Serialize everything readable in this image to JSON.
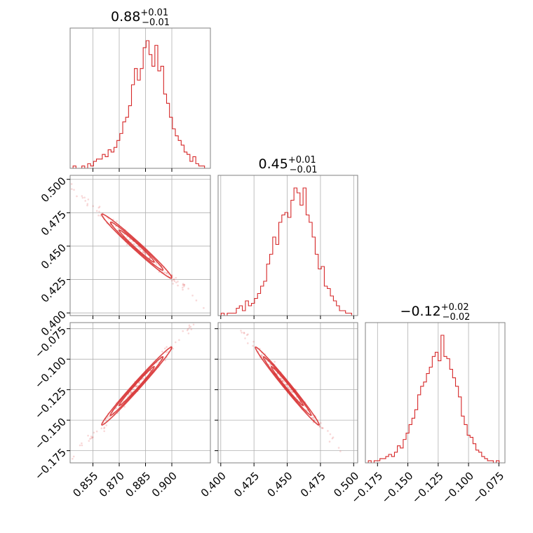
{
  "chart_data": {
    "type": "corner",
    "color": "#d62728",
    "parameters": [
      {
        "title": {
          "main": "0.88",
          "plus": "+0.01",
          "minus": "−0.01"
        },
        "range": [
          0.842,
          0.922
        ],
        "ticks": [
          0.855,
          0.87,
          0.885,
          0.9
        ],
        "tick_labels": [
          "0.855",
          "0.870",
          "0.885",
          "0.900"
        ],
        "grid_lines": [
          0.855,
          0.87,
          0.885,
          0.9
        ],
        "mean": 0.88,
        "sd": 0.01
      },
      {
        "title": {
          "main": "0.45",
          "plus": "+0.01",
          "minus": "−0.01"
        },
        "range": [
          0.398,
          0.503
        ],
        "ticks": [
          0.4,
          0.425,
          0.45,
          0.475,
          0.5
        ],
        "tick_labels": [
          "0.400",
          "0.425",
          "0.450",
          "0.475",
          "0.500"
        ],
        "grid_lines": [
          0.4,
          0.425,
          0.45,
          0.475,
          0.5
        ],
        "mean": 0.45,
        "sd": 0.012
      },
      {
        "title": {
          "main": "−0.12",
          "plus": "+0.02",
          "minus": "−0.02"
        },
        "range": [
          -0.185,
          -0.07
        ],
        "ticks": [
          -0.175,
          -0.15,
          -0.125,
          -0.1,
          -0.075
        ],
        "tick_labels": [
          "−0.175",
          "−0.150",
          "−0.125",
          "−0.100",
          "−0.075"
        ],
        "grid_lines": [
          -0.175,
          -0.15,
          -0.125,
          -0.1,
          -0.075
        ],
        "mean": -0.122,
        "sd": 0.016
      }
    ],
    "histograms": [
      {
        "param": 0,
        "counts": [
          0,
          1,
          0,
          0,
          1,
          0,
          2,
          1,
          3,
          4,
          4,
          6,
          5,
          8,
          7,
          9,
          12,
          15,
          20,
          22,
          27,
          36,
          43,
          38,
          43,
          52,
          55,
          49,
          44,
          53,
          42,
          44,
          32,
          28,
          22,
          17,
          14,
          12,
          10,
          7,
          6,
          3,
          5,
          2,
          1,
          1,
          0,
          0
        ]
      },
      {
        "param": 1,
        "counts": [
          0,
          1,
          0,
          1,
          1,
          1,
          3,
          4,
          2,
          6,
          4,
          5,
          7,
          9,
          12,
          14,
          21,
          25,
          32,
          29,
          38,
          41,
          42,
          40,
          47,
          52,
          50,
          45,
          52,
          41,
          38,
          32,
          25,
          19,
          20,
          12,
          11,
          8,
          6,
          4,
          2,
          2,
          1,
          1,
          0,
          0
        ]
      },
      {
        "param": 2,
        "counts": [
          0,
          1,
          0,
          1,
          1,
          2,
          2,
          3,
          4,
          3,
          5,
          8,
          7,
          11,
          14,
          18,
          21,
          25,
          32,
          36,
          38,
          42,
          45,
          50,
          52,
          48,
          60,
          50,
          49,
          44,
          40,
          36,
          31,
          22,
          18,
          13,
          12,
          9,
          6,
          5,
          3,
          2,
          1,
          1,
          0,
          1,
          0,
          0
        ]
      }
    ],
    "correlations": [
      {
        "x_param": 0,
        "y_param": 1,
        "rho": -0.985
      },
      {
        "x_param": 0,
        "y_param": 2,
        "rho": 0.99
      },
      {
        "x_param": 1,
        "y_param": 2,
        "rho": -0.99
      }
    ],
    "grid": true
  }
}
